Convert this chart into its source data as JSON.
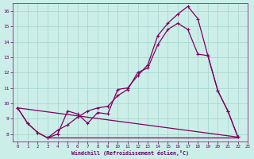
{
  "xlabel": "Windchill (Refroidissement éolien,°C)",
  "bg_color": "#cceee8",
  "grid_color": "#aad8d0",
  "line_color": "#800060",
  "xlim": [
    -0.5,
    23
  ],
  "ylim": [
    7.5,
    16.5
  ],
  "xticks": [
    0,
    1,
    2,
    3,
    4,
    5,
    6,
    7,
    8,
    9,
    10,
    11,
    12,
    13,
    14,
    15,
    16,
    17,
    18,
    19,
    20,
    21,
    22,
    23
  ],
  "yticks": [
    8,
    9,
    10,
    11,
    12,
    13,
    14,
    15,
    16
  ],
  "curve1_x": [
    0,
    1,
    2,
    3,
    4,
    5,
    6,
    7,
    8,
    9,
    10,
    11,
    12,
    13,
    14,
    15,
    16,
    17,
    18,
    19,
    20,
    21,
    22
  ],
  "curve1_y": [
    9.7,
    8.7,
    8.1,
    7.75,
    8.0,
    9.5,
    9.3,
    8.7,
    9.4,
    9.3,
    10.9,
    11.0,
    11.8,
    12.5,
    14.4,
    15.2,
    15.8,
    16.3,
    15.5,
    13.1,
    10.8,
    9.5,
    7.8
  ],
  "curve2_x": [
    0,
    1,
    2,
    3,
    4,
    5,
    6,
    7,
    8,
    9,
    10,
    11,
    12,
    13,
    14,
    15,
    16,
    17,
    18,
    19,
    20,
    21,
    22
  ],
  "curve2_y": [
    9.7,
    8.7,
    8.1,
    7.75,
    8.25,
    8.6,
    9.1,
    9.5,
    9.7,
    9.8,
    10.5,
    10.9,
    12.0,
    12.3,
    13.8,
    14.8,
    15.2,
    14.8,
    13.2,
    13.1,
    10.8,
    9.5,
    7.8
  ],
  "flat_line_x": [
    3,
    22
  ],
  "flat_line_y": [
    7.75,
    7.75
  ],
  "trend_line_x": [
    0,
    22
  ],
  "trend_line_y": [
    9.7,
    7.8
  ]
}
